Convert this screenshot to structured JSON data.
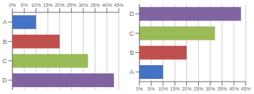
{
  "chart_data": [
    {
      "type": "bar",
      "orientation": "horizontal",
      "categories": [
        "A",
        "B",
        "C",
        "D"
      ],
      "values": [
        10,
        20,
        32,
        43
      ],
      "colors": [
        "#4472C4",
        "#C0504D",
        "#9BBB59",
        "#8064A2"
      ],
      "xlim": [
        0,
        45
      ],
      "xticks": [
        {
          "value": 0,
          "label": "0%"
        },
        {
          "value": 5,
          "label": "5%"
        },
        {
          "value": 10,
          "label": "10%"
        },
        {
          "value": 15,
          "label": "15%"
        },
        {
          "value": 20,
          "label": "20%"
        },
        {
          "value": 25,
          "label": "25%"
        },
        {
          "value": 30,
          "label": "30%"
        },
        {
          "value": 35,
          "label": "35%"
        },
        {
          "value": 40,
          "label": "40%"
        },
        {
          "value": 45,
          "label": "45%"
        }
      ],
      "grid": true
    },
    {
      "type": "bar",
      "orientation": "horizontal",
      "categories": [
        "D",
        "C",
        "B",
        "A"
      ],
      "values": [
        43,
        32,
        20,
        10
      ],
      "colors": [
        "#8064A2",
        "#9BBB59",
        "#C0504D",
        "#4472C4"
      ],
      "xlim": [
        0,
        45
      ],
      "xticks": [
        {
          "value": 0,
          "label": "0%"
        },
        {
          "value": 5,
          "label": "5%"
        },
        {
          "value": 10,
          "label": "10%"
        },
        {
          "value": 15,
          "label": "15%"
        },
        {
          "value": 20,
          "label": "20%"
        },
        {
          "value": 25,
          "label": "25%"
        },
        {
          "value": 30,
          "label": "30%"
        },
        {
          "value": 35,
          "label": "35%"
        },
        {
          "value": 40,
          "label": "40%"
        },
        {
          "value": 45,
          "label": "45%"
        }
      ],
      "grid": true
    }
  ]
}
